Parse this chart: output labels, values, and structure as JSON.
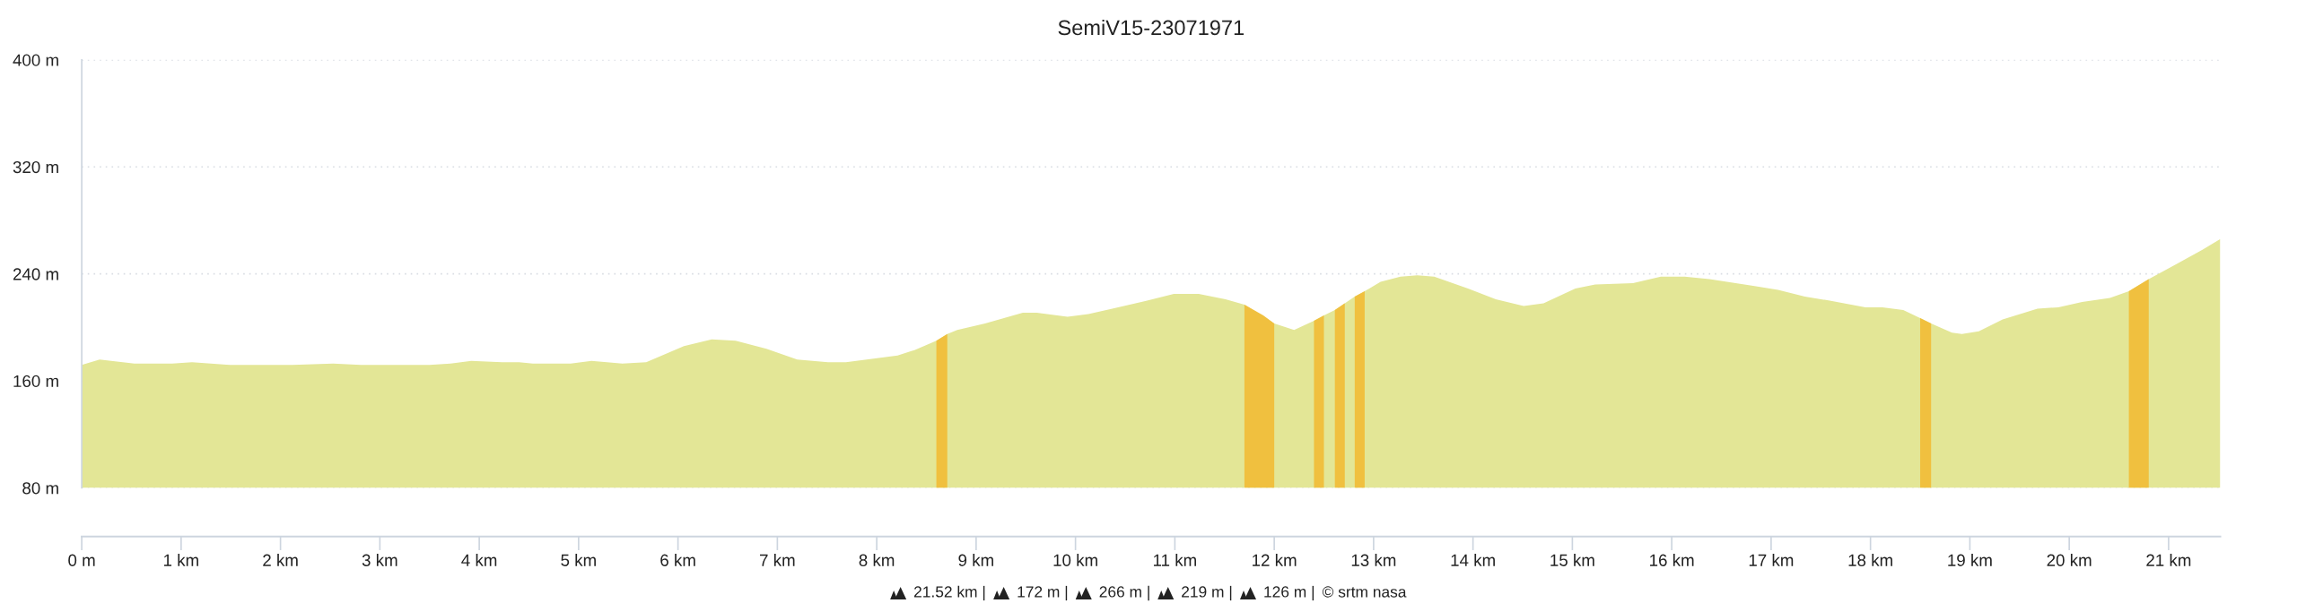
{
  "chart_data": {
    "type": "area",
    "title": "SemiV15-23071971",
    "xlim": [
      0,
      21.52
    ],
    "ylim": [
      80,
      400
    ],
    "xticks": [
      {
        "value": 0,
        "label": "0 m"
      },
      {
        "value": 1,
        "label": "1 km"
      },
      {
        "value": 2,
        "label": "2 km"
      },
      {
        "value": 3,
        "label": "3 km"
      },
      {
        "value": 4,
        "label": "4 km"
      },
      {
        "value": 5,
        "label": "5 km"
      },
      {
        "value": 6,
        "label": "6 km"
      },
      {
        "value": 7,
        "label": "7 km"
      },
      {
        "value": 8,
        "label": "8 km"
      },
      {
        "value": 9,
        "label": "9 km"
      },
      {
        "value": 10,
        "label": "10 km"
      },
      {
        "value": 11,
        "label": "11 km"
      },
      {
        "value": 12,
        "label": "12 km"
      },
      {
        "value": 13,
        "label": "13 km"
      },
      {
        "value": 14,
        "label": "14 km"
      },
      {
        "value": 15,
        "label": "15 km"
      },
      {
        "value": 16,
        "label": "16 km"
      },
      {
        "value": 17,
        "label": "17 km"
      },
      {
        "value": 18,
        "label": "18 km"
      },
      {
        "value": 19,
        "label": "19 km"
      },
      {
        "value": 20,
        "label": "20 km"
      },
      {
        "value": 21,
        "label": "21 km"
      }
    ],
    "yticks": [
      {
        "value": 80,
        "label": "80 m"
      },
      {
        "value": 160,
        "label": "160 m"
      },
      {
        "value": 240,
        "label": "240 m"
      },
      {
        "value": 320,
        "label": "320 m"
      },
      {
        "value": 400,
        "label": "400 m"
      }
    ],
    "grid": "y",
    "series": [
      {
        "color": "#e3e696",
        "x": [
          0,
          0.18,
          0.53,
          0.91,
          1.11,
          1.49,
          2.01,
          2.12,
          2.53,
          2.81,
          3.5,
          3.71,
          3.92,
          4.23,
          4.4,
          4.54,
          4.92,
          5.13,
          5.44,
          5.68,
          6.06,
          6.34,
          6.58,
          6.89,
          7.2,
          7.51,
          7.69,
          8.21,
          8.38,
          8.6,
          8.71,
          8.81,
          9.09,
          9.47,
          9.61,
          9.92,
          10.13,
          10.37,
          10.72,
          10.99,
          11.24,
          11.51,
          11.7,
          12.0,
          12.2,
          12.4,
          12.5,
          12.61,
          12.71,
          12.81,
          12.91,
          13.07,
          13.27,
          13.44,
          13.61,
          13.95,
          14.23,
          14.51,
          14.71,
          15.03,
          15.23,
          15.61,
          15.89,
          16.13,
          16.38,
          16.82,
          17.07,
          17.34,
          17.59,
          17.95,
          18.12,
          18.33,
          18.5,
          18.61,
          18.82,
          18.92,
          19.09,
          19.33,
          19.68,
          19.89,
          20.13,
          20.41,
          20.6,
          20.8,
          21.07,
          21.34,
          21.52
        ],
        "values": [
          172,
          176,
          173,
          173,
          174,
          172,
          172,
          172,
          173,
          172,
          172,
          173,
          175,
          174,
          174,
          173,
          173,
          175,
          173,
          174,
          186,
          191,
          190,
          184,
          176,
          174,
          174,
          179,
          183,
          190,
          195,
          198,
          203,
          211,
          211,
          208,
          210,
          214,
          220,
          225,
          225,
          221,
          217,
          203,
          198,
          205,
          209,
          213,
          218,
          223,
          227,
          234,
          238,
          239,
          238,
          229,
          221,
          216,
          218,
          229,
          232,
          233,
          238,
          238,
          236,
          231,
          228,
          223,
          220,
          215,
          215,
          213,
          207,
          203,
          196,
          195,
          197,
          206,
          214,
          215,
          219,
          222,
          227,
          236,
          247,
          258,
          266
        ]
      },
      {
        "color": "#f0c03f",
        "x": [
          8.6,
          8.71,
          null,
          11.7,
          11.89,
          12.0,
          null,
          12.4,
          12.5,
          null,
          12.61,
          12.71,
          null,
          12.81,
          12.91,
          null,
          18.5,
          18.61,
          null,
          20.6,
          20.8
        ],
        "values": [
          190,
          195,
          null,
          217,
          209,
          203,
          null,
          205,
          209,
          null,
          213,
          218,
          null,
          223,
          227,
          null,
          207,
          203,
          null,
          227,
          236
        ]
      }
    ],
    "annotations": [
      "21.52 km |",
      "172 m |",
      "266 m |",
      "219 m |",
      "126 m |",
      "© srtm nasa"
    ]
  }
}
